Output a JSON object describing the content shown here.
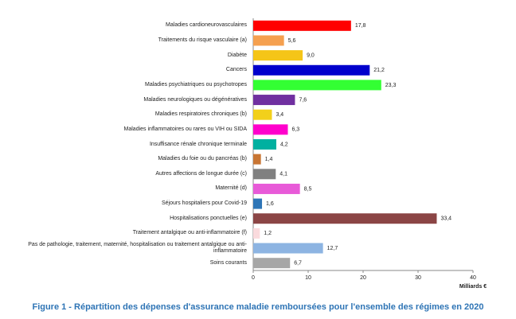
{
  "chart_data": {
    "type": "barh",
    "title": "Figure 1 - Répartition des dépenses d'assurance maladie remboursées pour l'ensemble des régimes en 2020",
    "x_label": "Milliards €",
    "categories": [
      "Maladies cardioneurovasculaires",
      "Traitements du risque vasculaire (a)",
      "Diabète",
      "Cancers",
      "Maladies psychiatriques ou psychotropes",
      "Maladies neurologiques ou dégénératives",
      "Maladies respiratoires chroniques (b)",
      "Maladies inflammatoires ou rares ou VIH ou SIDA",
      "Insuffisance rénale chronique terminale",
      "Maladies du foie ou du pancréas (b)",
      "Autres affections de longue durée (c)",
      "Maternité (d)",
      "Séjours hospitaliers pour Covid-19",
      "Hospitalisations ponctuelles (e)",
      "Traitement antalgique ou anti-inflammatoire (f)",
      "Pas de pathologie, traitement, maternité, hospitalisation ou traitement antalgique ou anti-inflammatoire",
      "Soins courants"
    ],
    "values": [
      17.8,
      5.6,
      9.0,
      21.2,
      23.3,
      7.6,
      3.4,
      6.3,
      4.2,
      1.4,
      4.1,
      8.5,
      1.6,
      33.4,
      1.2,
      12.7,
      6.7
    ],
    "value_labels": [
      "17,8",
      "5,6",
      "9,0",
      "21,2",
      "23,3",
      "7,6",
      "3,4",
      "6,3",
      "4,2",
      "1,4",
      "4,1",
      "8,5",
      "1,6",
      "33,4",
      "1,2",
      "12,7",
      "6,7"
    ],
    "colors": [
      "#ff0000",
      "#f5a04f",
      "#f5c518",
      "#0000cc",
      "#33ff33",
      "#7030a0",
      "#f2d01b",
      "#ff00cc",
      "#00b0a0",
      "#c87533",
      "#808080",
      "#e85ad8",
      "#2e75b6",
      "#8b4545",
      "#fadadd",
      "#8db4e2",
      "#a6a6a6"
    ],
    "xlim": [
      0,
      40
    ],
    "xticks": [
      0,
      10,
      20,
      30,
      40
    ]
  }
}
